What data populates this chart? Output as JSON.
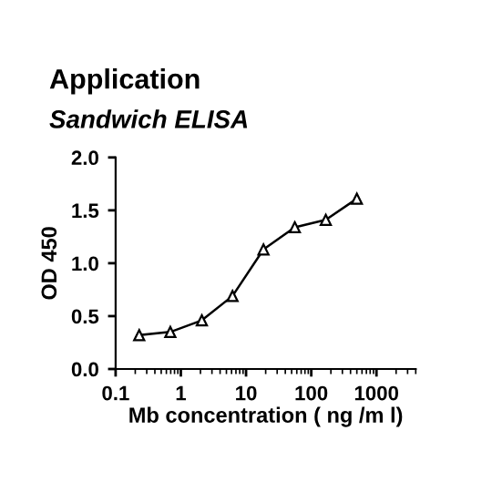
{
  "chart_data": {
    "type": "line",
    "title": "Application",
    "subtitle": "Sandwich ELISA",
    "xlabel": "Mb concentration ( ng /m l)",
    "ylabel": "OD 450",
    "x": [
      0.23,
      0.69,
      2.1,
      6.2,
      18.5,
      56,
      167,
      500
    ],
    "series": [
      {
        "color": "#000000",
        "values": [
          0.32,
          0.35,
          0.46,
          0.69,
          1.13,
          1.34,
          1.41,
          1.61
        ]
      }
    ],
    "log": "x",
    "xlim": [
      0.1,
      4000
    ],
    "xticks": [
      0.1,
      1,
      10,
      100,
      {
        "value": 1000,
        "label": "1000"
      }
    ],
    "ylim": [
      0,
      2
    ],
    "yticks": [
      {
        "value": 0,
        "label": "0.0"
      },
      {
        "value": 0.5,
        "label": "0.5"
      },
      {
        "value": 1,
        "label": "1.0"
      },
      {
        "value": 1.5,
        "label": "1.5"
      },
      {
        "value": 2,
        "label": "2.0"
      }
    ],
    "marker": "triangle",
    "line_style": "solid",
    "grid": false,
    "legend": false
  }
}
